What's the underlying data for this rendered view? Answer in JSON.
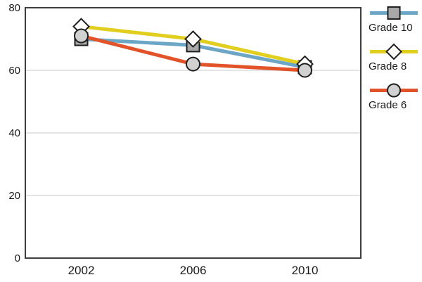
{
  "chart_data": {
    "type": "line",
    "title": "",
    "categories": [
      "2002",
      "2006",
      "2010"
    ],
    "series": [
      {
        "name": "Grade 10",
        "marker": "square",
        "line_color": "#6BA6C6",
        "marker_fill": "#A8A8A8",
        "values": [
          70,
          68,
          61
        ]
      },
      {
        "name": "Grade 8",
        "marker": "diamond",
        "line_color": "#E2CE1E",
        "marker_fill": "#FFFFFF",
        "values": [
          74,
          70,
          62
        ]
      },
      {
        "name": "Grade 6",
        "marker": "circle",
        "line_color": "#E2532A",
        "marker_fill": "#D1D1D1",
        "values": [
          71,
          62,
          60
        ]
      }
    ],
    "xlabel": "",
    "ylabel": "",
    "ylim": [
      0,
      80
    ],
    "yticks": [
      0,
      20,
      40,
      60,
      80
    ],
    "grid": true,
    "legend_position": "right",
    "colors": {
      "frame": "#3E3E3E",
      "gridline": "#C9C9CE",
      "marker_stroke": "#1E1E1E",
      "text": "#1A1A1A",
      "background": "#FFFFFF"
    }
  }
}
